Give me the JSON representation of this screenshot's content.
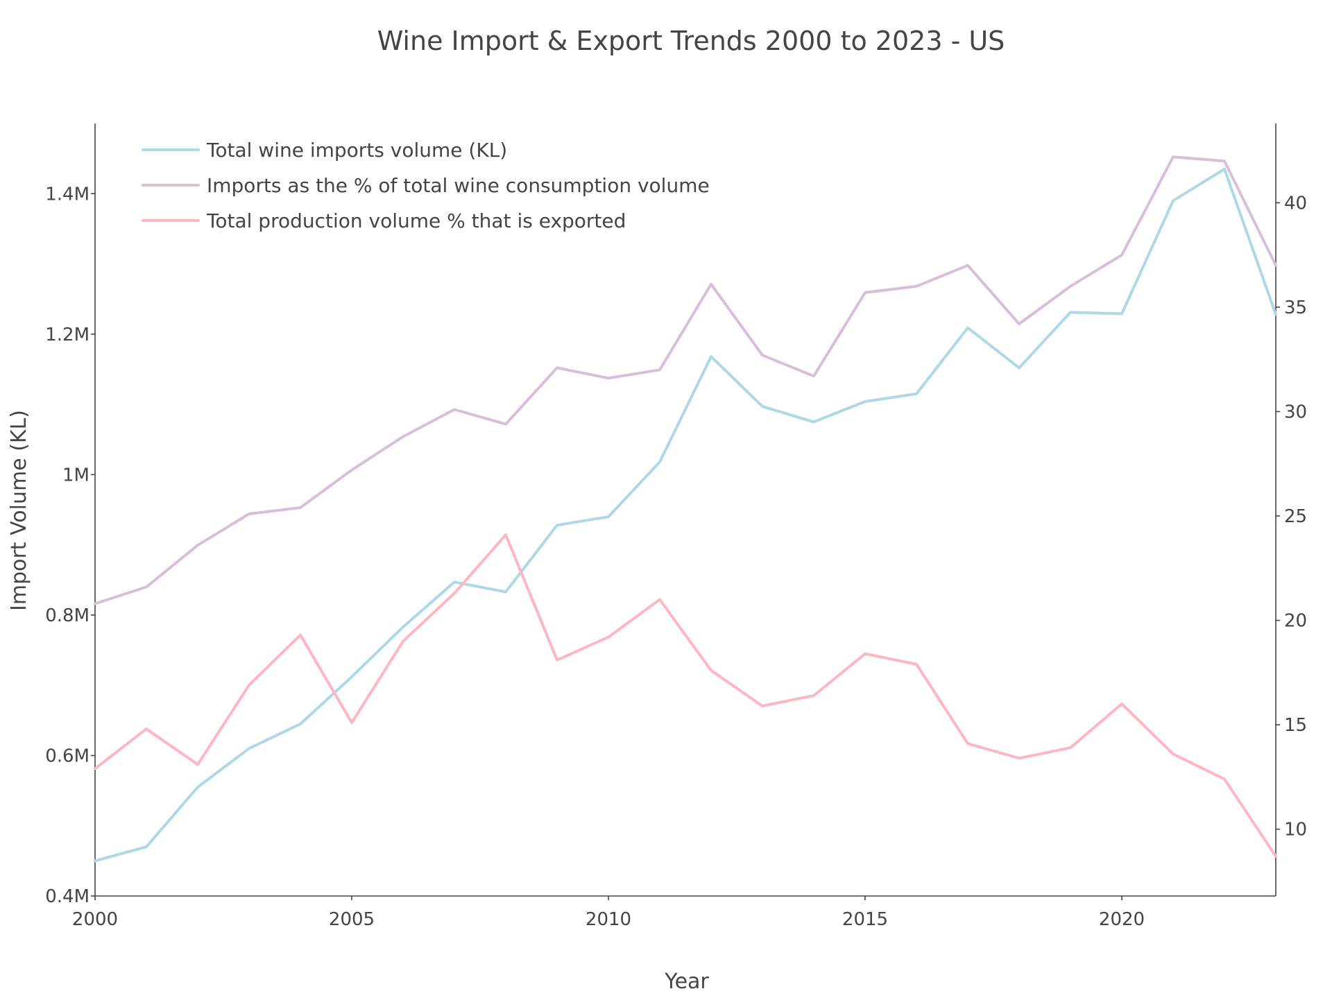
{
  "chart_data": {
    "type": "line",
    "title": "Wine Import & Export Trends 2000 to 2023 - US",
    "xlabel": "Year",
    "ylabel": "Import Volume (KL)",
    "y2label": "",
    "x": [
      2000,
      2001,
      2002,
      2003,
      2004,
      2005,
      2006,
      2007,
      2008,
      2009,
      2010,
      2011,
      2012,
      2013,
      2014,
      2015,
      2016,
      2017,
      2018,
      2019,
      2020,
      2021,
      2022,
      2023
    ],
    "xlim": [
      2000,
      2023
    ],
    "ylim": [
      0.4,
      1.5
    ],
    "y2lim": [
      6.8,
      43.8
    ],
    "x_ticks": [
      {
        "value": 2000,
        "label": "2000"
      },
      {
        "value": 2005,
        "label": "2005"
      },
      {
        "value": 2010,
        "label": "2010"
      },
      {
        "value": 2015,
        "label": "2015"
      },
      {
        "value": 2020,
        "label": "2020"
      }
    ],
    "y_ticks": [
      {
        "value": 0.4,
        "label": "0.4M"
      },
      {
        "value": 0.6,
        "label": "0.6M"
      },
      {
        "value": 0.8,
        "label": "0.8M"
      },
      {
        "value": 1.0,
        "label": "1M"
      },
      {
        "value": 1.2,
        "label": "1.2M"
      },
      {
        "value": 1.4,
        "label": "1.4M"
      }
    ],
    "y2_ticks": [
      {
        "value": 10,
        "label": "10"
      },
      {
        "value": 15,
        "label": "15"
      },
      {
        "value": 20,
        "label": "20"
      },
      {
        "value": 25,
        "label": "25"
      },
      {
        "value": 30,
        "label": "30"
      },
      {
        "value": 35,
        "label": "35"
      },
      {
        "value": 40,
        "label": "40"
      }
    ],
    "grid": false,
    "legend_position": "top-left",
    "series": [
      {
        "name": "Total wine imports volume (KL)",
        "axis": "left",
        "unit": "millions of KL",
        "color": "#add8e6",
        "values": [
          0.45,
          0.47,
          0.555,
          0.61,
          0.645,
          0.712,
          0.783,
          0.847,
          0.833,
          0.928,
          0.94,
          1.018,
          1.168,
          1.097,
          1.075,
          1.104,
          1.115,
          1.209,
          1.152,
          1.231,
          1.229,
          1.39,
          1.435,
          1.228
        ]
      },
      {
        "name": "Imports as the % of total wine consumption volume",
        "axis": "right",
        "color": "#d8bfd8",
        "values": [
          20.8,
          21.6,
          23.6,
          25.1,
          25.4,
          27.2,
          28.8,
          30.1,
          29.4,
          32.1,
          31.6,
          32.0,
          36.1,
          32.7,
          31.7,
          35.7,
          36.0,
          37.0,
          34.2,
          36.0,
          37.5,
          42.2,
          42.0,
          37.0
        ]
      },
      {
        "name": "Total production volume % that is exported",
        "axis": "right",
        "color": "#ffb6c1",
        "values": [
          12.9,
          14.8,
          13.1,
          16.9,
          19.3,
          15.1,
          19.0,
          21.3,
          24.1,
          18.1,
          19.2,
          21.0,
          17.6,
          15.9,
          16.4,
          18.4,
          17.9,
          14.1,
          13.4,
          13.9,
          16.0,
          13.6,
          12.4,
          8.7
        ]
      }
    ]
  }
}
